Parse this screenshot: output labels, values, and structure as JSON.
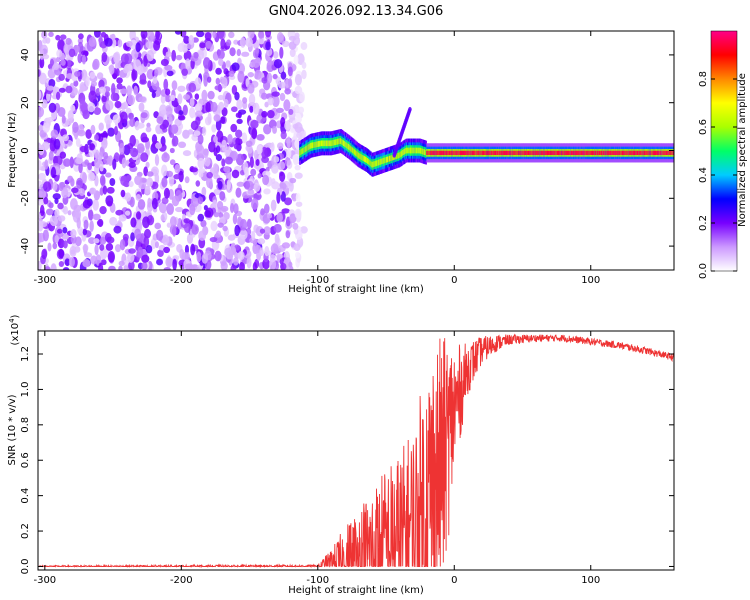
{
  "figure": {
    "title": "GN04.2026.092.13.34.G06"
  },
  "chart_data": [
    {
      "type": "heatmap",
      "xlabel": "Height of straight line (km)",
      "ylabel": "Frequency (Hz)",
      "xlim": [
        -305,
        161
      ],
      "ylim": [
        -50,
        50
      ],
      "x_ticks": [
        -300,
        -200,
        -100,
        0,
        100
      ],
      "y_ticks": [
        -40,
        -20,
        0,
        20,
        40
      ],
      "noise_region": {
        "x": [
          -305,
          -110
        ],
        "y": [
          -50,
          50
        ]
      },
      "signal_track": {
        "x": [
          -113,
          -105,
          -97,
          -90,
          -83,
          -76,
          -70,
          -64,
          -60,
          -55,
          -50,
          -45,
          -40,
          -35,
          -30,
          -25,
          -20,
          -10,
          0,
          10,
          20,
          40,
          60,
          70,
          80,
          90,
          100,
          110,
          130,
          161
        ],
        "y": [
          -1,
          2,
          3,
          3,
          4,
          1,
          -2,
          -4,
          -6,
          -5,
          -4,
          -3,
          -2,
          0,
          0,
          0,
          -1,
          -1,
          -1,
          -1,
          -1,
          -1,
          -1,
          -1,
          -1,
          -1,
          -1,
          -1,
          -1,
          -1
        ]
      },
      "side_streak": {
        "x": [
          -44,
          -32
        ],
        "y": [
          -2,
          18
        ]
      },
      "colorbar": {
        "label": "Normalized spectral amplitude",
        "ticks": [
          0.0,
          0.2,
          0.4,
          0.6,
          0.8
        ],
        "tick_labels": [
          "0.0",
          "0.2",
          "0.4",
          "0.6",
          "0.8"
        ],
        "range": [
          0,
          1
        ],
        "colors": [
          "#ffffff",
          "#cc99ff",
          "#7700ff",
          "#0000ff",
          "#00ccff",
          "#00ff66",
          "#aaff00",
          "#ffff00",
          "#ff8800",
          "#ff0000",
          "#ff0088"
        ]
      }
    },
    {
      "type": "line",
      "xlabel": "Height of straight line (km)",
      "ylabel": "SNR (10 * v/v)",
      "y_multiplier_label": "(x10",
      "y_multiplier_exp": "4",
      "y_multiplier_close": ")",
      "xlim": [
        -305,
        161
      ],
      "ylim": [
        -0.02,
        1.33
      ],
      "x_ticks": [
        -300,
        -200,
        -100,
        0,
        100
      ],
      "y_ticks": [
        0.0,
        0.2,
        0.4,
        0.6,
        0.8,
        1.0,
        1.2
      ],
      "series_color": "#ee3333",
      "series": [
        {
          "envelope_x": [
            -305,
            -100,
            -90,
            -80,
            -70,
            -60,
            -50,
            -40,
            -30,
            -25,
            -20,
            -15,
            -10,
            -5,
            0,
            5,
            10,
            20,
            30,
            40,
            60,
            80,
            100,
            120,
            140,
            161
          ],
          "baseline": [
            0.0,
            0.0,
            0.02,
            0.03,
            0.05,
            0.08,
            0.12,
            0.15,
            0.2,
            0.28,
            0.35,
            0.45,
            0.55,
            0.7,
            0.88,
            1.0,
            1.12,
            1.22,
            1.26,
            1.28,
            1.29,
            1.29,
            1.27,
            1.25,
            1.22,
            1.18
          ],
          "spread": [
            0.005,
            0.01,
            0.08,
            0.2,
            0.3,
            0.38,
            0.45,
            0.5,
            0.6,
            0.7,
            0.8,
            0.85,
            0.75,
            0.6,
            0.4,
            0.25,
            0.15,
            0.08,
            0.05,
            0.03,
            0.02,
            0.02,
            0.02,
            0.02,
            0.02,
            0.02
          ]
        }
      ]
    }
  ]
}
